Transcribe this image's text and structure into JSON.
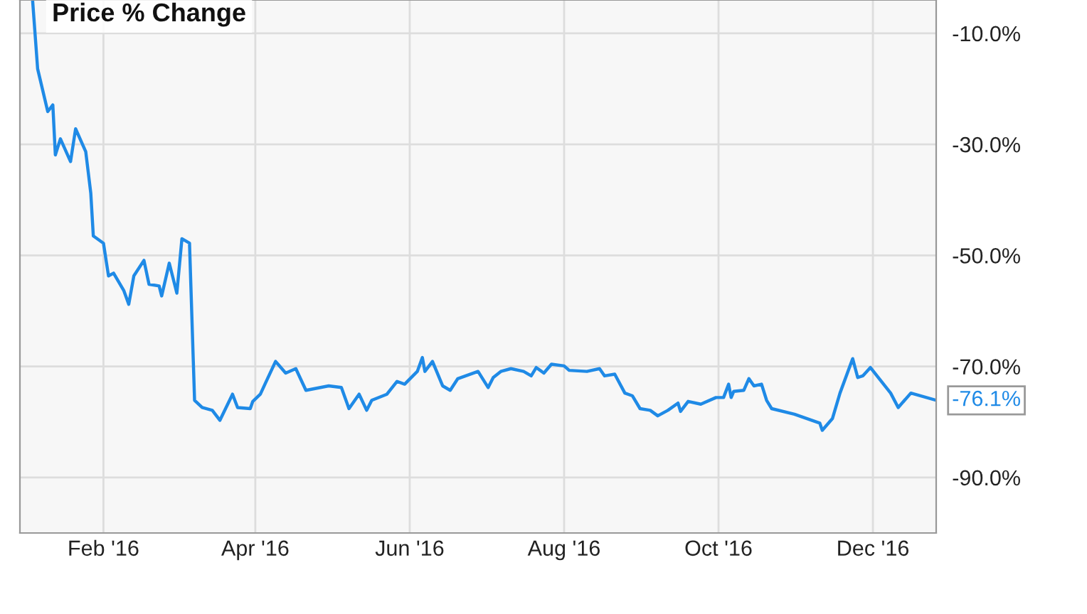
{
  "chart_data": {
    "type": "line",
    "title": "Price % Change",
    "x": [
      "2016-01-04",
      "2016-01-06",
      "2016-01-10",
      "2016-01-12",
      "2016-01-13",
      "2016-01-15",
      "2016-01-19",
      "2016-01-21",
      "2016-01-25",
      "2016-01-27",
      "2016-01-28",
      "2016-02-01",
      "2016-02-03",
      "2016-02-05",
      "2016-02-09",
      "2016-02-11",
      "2016-02-13",
      "2016-02-17",
      "2016-02-19",
      "2016-02-23",
      "2016-02-24",
      "2016-02-27",
      "2016-03-01",
      "2016-03-03",
      "2016-03-06",
      "2016-03-08",
      "2016-03-11",
      "2016-03-15",
      "2016-03-18",
      "2016-03-23",
      "2016-03-25",
      "2016-03-30",
      "2016-03-31",
      "2016-04-03",
      "2016-04-05",
      "2016-04-09",
      "2016-04-13",
      "2016-04-17",
      "2016-04-21",
      "2016-04-30",
      "2016-05-05",
      "2016-05-08",
      "2016-05-12",
      "2016-05-15",
      "2016-05-17",
      "2016-05-23",
      "2016-05-27",
      "2016-05-30",
      "2016-06-04",
      "2016-06-06",
      "2016-06-07",
      "2016-06-10",
      "2016-06-14",
      "2016-06-17",
      "2016-06-20",
      "2016-06-28",
      "2016-07-02",
      "2016-07-04",
      "2016-07-07",
      "2016-07-11",
      "2016-07-16",
      "2016-07-19",
      "2016-07-21",
      "2016-07-24",
      "2016-07-27",
      "2016-08-01",
      "2016-08-03",
      "2016-08-10",
      "2016-08-15",
      "2016-08-17",
      "2016-08-21",
      "2016-08-25",
      "2016-08-28",
      "2016-08-31",
      "2016-09-04",
      "2016-09-07",
      "2016-09-11",
      "2016-09-15",
      "2016-09-16",
      "2016-09-19",
      "2016-09-24",
      "2016-09-30",
      "2016-10-03",
      "2016-10-05",
      "2016-10-06",
      "2016-10-07",
      "2016-10-11",
      "2016-10-13",
      "2016-10-15",
      "2016-10-18",
      "2016-10-20",
      "2016-10-22",
      "2016-10-31",
      "2016-11-10",
      "2016-11-11",
      "2016-11-15",
      "2016-11-18",
      "2016-11-23",
      "2016-11-25",
      "2016-11-27",
      "2016-11-30",
      "2016-12-08",
      "2016-12-11",
      "2016-12-16",
      "2016-12-26"
    ],
    "series": [
      {
        "color": "#1f8ae6",
        "values": [
          -4,
          -16.4,
          -24.1,
          -22.9,
          -31.9,
          -29.0,
          -33.1,
          -27.2,
          -31.3,
          -38.8,
          -46.5,
          -47.8,
          -53.7,
          -53.2,
          -56.3,
          -58.8,
          -53.7,
          -50.9,
          -55.2,
          -55.5,
          -57.3,
          -51.4,
          -56.8,
          -47.0,
          -47.8,
          -76.1,
          -77.4,
          -77.9,
          -79.7,
          -75.0,
          -77.4,
          -77.6,
          -76.3,
          -75.0,
          -73.0,
          -69.1,
          -71.2,
          -70.4,
          -74.3,
          -73.5,
          -73.8,
          -77.6,
          -75.0,
          -77.9,
          -76.1,
          -75.0,
          -72.7,
          -73.2,
          -70.9,
          -68.4,
          -70.9,
          -69.1,
          -73.5,
          -74.3,
          -72.2,
          -70.9,
          -73.8,
          -72.0,
          -70.9,
          -70.4,
          -70.9,
          -71.7,
          -70.2,
          -71.2,
          -69.6,
          -69.9,
          -70.7,
          -70.9,
          -70.4,
          -71.7,
          -71.4,
          -74.8,
          -75.3,
          -77.6,
          -77.9,
          -78.9,
          -77.9,
          -76.6,
          -78.1,
          -76.3,
          -76.8,
          -75.6,
          -75.6,
          -73.2,
          -75.6,
          -74.5,
          -74.3,
          -72.2,
          -73.5,
          -73.2,
          -76.1,
          -77.6,
          -78.6,
          -80.2,
          -81.5,
          -79.4,
          -74.8,
          -68.6,
          -72.0,
          -71.7,
          -70.2,
          -74.8,
          -77.4,
          -74.8,
          -76.1
        ]
      }
    ],
    "xlim": [
      "2015-12-30",
      "2016-12-26"
    ],
    "xticks": [
      {
        "value": "2016-02-01",
        "label": "Feb '16"
      },
      {
        "value": "2016-04-01",
        "label": "Apr '16"
      },
      {
        "value": "2016-06-01",
        "label": "Jun '16"
      },
      {
        "value": "2016-08-01",
        "label": "Aug '16"
      },
      {
        "value": "2016-10-01",
        "label": "Oct '16"
      },
      {
        "value": "2016-12-01",
        "label": "Dec '16"
      }
    ],
    "ylim": [
      -100,
      -4
    ],
    "yticks": [
      {
        "value": -10,
        "label": "-10.0%"
      },
      {
        "value": -30,
        "label": "-30.0%"
      },
      {
        "value": -50,
        "label": "-50.0%"
      },
      {
        "value": -70,
        "label": "-70.0%"
      },
      {
        "value": -90,
        "label": "-90.0%"
      }
    ],
    "grid": true,
    "annotations": [
      {
        "text": "-76.1%",
        "x": "2016-12-26",
        "y": -76.1
      }
    ]
  }
}
